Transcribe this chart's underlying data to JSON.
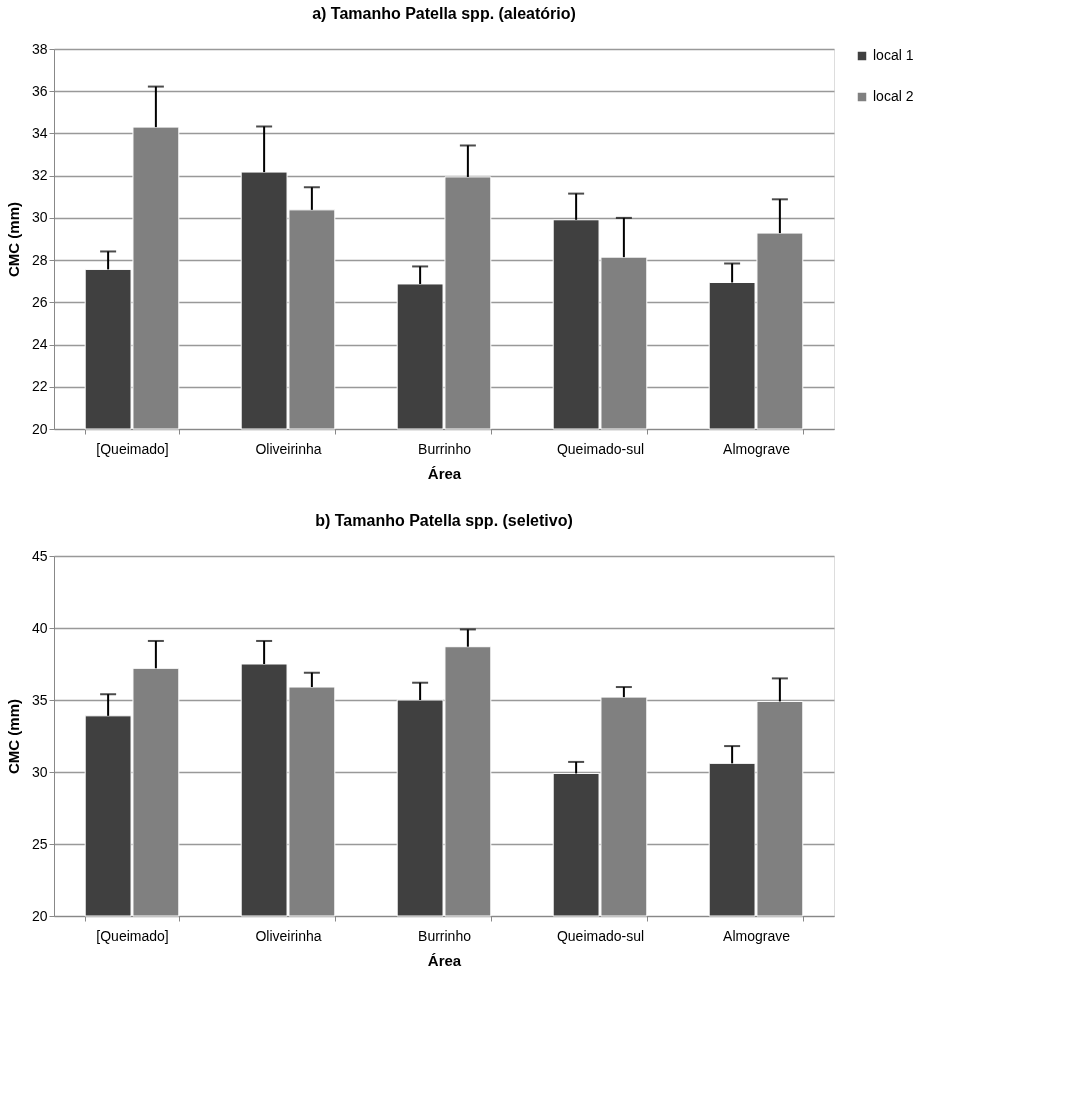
{
  "chart_data": [
    {
      "type": "bar",
      "title": "a) Tamanho Patella spp. (aleatório)",
      "xlabel": "Área",
      "ylabel": "CMC (mm)",
      "categories": [
        "[Queimado]",
        "Oliveirinha",
        "Burrinho",
        "Queimado-sul",
        "Almograve"
      ],
      "series": [
        {
          "name": "local 1",
          "color": "#404040",
          "values": [
            27.56,
            32.17,
            26.87,
            29.91,
            26.94
          ],
          "errors": [
            [
              27.56,
              28.41
            ],
            [
              32.17,
              34.33
            ],
            [
              26.87,
              27.7
            ],
            [
              29.91,
              31.15
            ],
            [
              26.94,
              27.84
            ]
          ]
        },
        {
          "name": "local 2",
          "color": "#808080",
          "values": [
            34.3,
            30.38,
            31.94,
            28.14,
            29.28
          ],
          "errors": [
            [
              34.3,
              36.22
            ],
            [
              30.38,
              31.45
            ],
            [
              31.94,
              33.43
            ],
            [
              28.14,
              30.0
            ],
            [
              29.28,
              30.88
            ]
          ]
        }
      ],
      "ylim": [
        20,
        38
      ],
      "yticks": [
        20,
        22,
        24,
        26,
        28,
        30,
        32,
        34,
        36,
        38
      ],
      "grid": "y",
      "legend": "right"
    },
    {
      "type": "bar",
      "title": "b) Tamanho Patella spp. (seletivo)",
      "xlabel": "Área",
      "ylabel": "CMC (mm)",
      "categories": [
        "[Queimado]",
        "Oliveirinha",
        "Burrinho",
        "Queimado-sul",
        "Almograve"
      ],
      "series": [
        {
          "name": "local 1",
          "color": "#404040",
          "values": [
            33.9,
            37.5,
            35.0,
            29.9,
            30.6
          ],
          "errors": [
            [
              33.9,
              35.4
            ],
            [
              37.5,
              39.1
            ],
            [
              35.0,
              36.2
            ],
            [
              29.9,
              30.7
            ],
            [
              30.6,
              31.8
            ]
          ]
        },
        {
          "name": "local 2",
          "color": "#808080",
          "values": [
            37.2,
            35.9,
            38.7,
            35.2,
            34.9
          ],
          "errors": [
            [
              37.2,
              39.1
            ],
            [
              35.9,
              36.9
            ],
            [
              38.7,
              39.9
            ],
            [
              35.2,
              35.9
            ],
            [
              34.9,
              36.5
            ]
          ]
        }
      ],
      "ylim": [
        20,
        45
      ],
      "yticks": [
        20,
        25,
        30,
        35,
        40,
        45
      ],
      "grid": "y",
      "legend": "right"
    }
  ]
}
